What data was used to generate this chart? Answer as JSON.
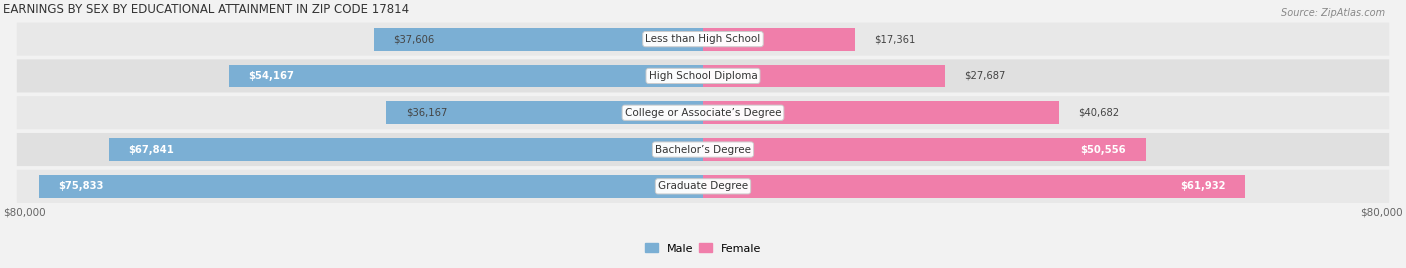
{
  "title": "EARNINGS BY SEX BY EDUCATIONAL ATTAINMENT IN ZIP CODE 17814",
  "source": "Source: ZipAtlas.com",
  "categories": [
    "Less than High School",
    "High School Diploma",
    "College or Associate’s Degree",
    "Bachelor’s Degree",
    "Graduate Degree"
  ],
  "male_values": [
    37606,
    54167,
    36167,
    67841,
    75833
  ],
  "female_values": [
    17361,
    27687,
    40682,
    50556,
    61932
  ],
  "male_label_colors": [
    "#444444",
    "#ffffff",
    "#444444",
    "#ffffff",
    "#ffffff"
  ],
  "female_label_colors": [
    "#444444",
    "#444444",
    "#444444",
    "#ffffff",
    "#ffffff"
  ],
  "max_value": 80000,
  "male_color": "#7bafd4",
  "female_color": "#f07eaa",
  "male_label": "Male",
  "female_label": "Female",
  "bg_color": "#f2f2f2",
  "row_colors": [
    "#e8e8e8",
    "#e0e0e0",
    "#e8e8e8",
    "#e0e0e0",
    "#e8e8e8"
  ],
  "bar_height": 0.62,
  "xlabel_left": "$80,000",
  "xlabel_right": "$80,000"
}
